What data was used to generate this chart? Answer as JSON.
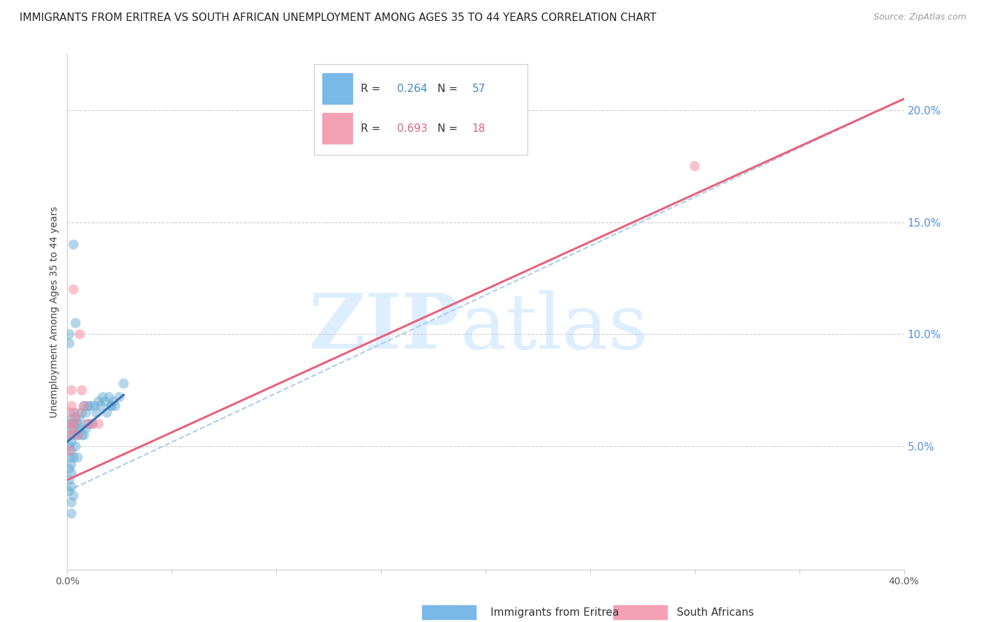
{
  "title": "IMMIGRANTS FROM ERITREA VS SOUTH AFRICAN UNEMPLOYMENT AMONG AGES 35 TO 44 YEARS CORRELATION CHART",
  "source": "Source: ZipAtlas.com",
  "ylabel": "Unemployment Among Ages 35 to 44 years",
  "xlim": [
    0.0,
    0.4
  ],
  "ylim": [
    -0.005,
    0.225
  ],
  "xticks": [
    0.0,
    0.05,
    0.1,
    0.15,
    0.2,
    0.25,
    0.3,
    0.35,
    0.4
  ],
  "yticks_right": [
    0.05,
    0.1,
    0.15,
    0.2
  ],
  "ytick_right_labels": [
    "5.0%",
    "10.0%",
    "15.0%",
    "20.0%"
  ],
  "blue_scatter_x": [
    0.001,
    0.001,
    0.001,
    0.001,
    0.001,
    0.001,
    0.001,
    0.002,
    0.002,
    0.002,
    0.002,
    0.002,
    0.002,
    0.002,
    0.003,
    0.003,
    0.003,
    0.003,
    0.003,
    0.004,
    0.004,
    0.004,
    0.005,
    0.005,
    0.005,
    0.006,
    0.006,
    0.007,
    0.007,
    0.008,
    0.008,
    0.009,
    0.009,
    0.01,
    0.01,
    0.011,
    0.012,
    0.013,
    0.014,
    0.015,
    0.016,
    0.017,
    0.018,
    0.019,
    0.02,
    0.021,
    0.022,
    0.023,
    0.025,
    0.027,
    0.001,
    0.001,
    0.002,
    0.002,
    0.003,
    0.004,
    0.021
  ],
  "blue_scatter_y": [
    0.05,
    0.055,
    0.06,
    0.045,
    0.04,
    0.035,
    0.03,
    0.048,
    0.052,
    0.058,
    0.062,
    0.042,
    0.038,
    0.032,
    0.055,
    0.06,
    0.065,
    0.045,
    0.028,
    0.058,
    0.063,
    0.05,
    0.06,
    0.055,
    0.045,
    0.062,
    0.058,
    0.065,
    0.055,
    0.068,
    0.055,
    0.065,
    0.058,
    0.068,
    0.06,
    0.068,
    0.06,
    0.068,
    0.065,
    0.07,
    0.068,
    0.072,
    0.07,
    0.065,
    0.072,
    0.068,
    0.07,
    0.068,
    0.072,
    0.078,
    0.096,
    0.1,
    0.02,
    0.025,
    0.14,
    0.105,
    0.068
  ],
  "pink_scatter_x": [
    0.001,
    0.001,
    0.001,
    0.002,
    0.002,
    0.002,
    0.003,
    0.003,
    0.004,
    0.005,
    0.005,
    0.006,
    0.007,
    0.008,
    0.01,
    0.012,
    0.015,
    0.3
  ],
  "pink_scatter_y": [
    0.048,
    0.055,
    0.065,
    0.06,
    0.068,
    0.075,
    0.058,
    0.12,
    0.062,
    0.065,
    0.055,
    0.1,
    0.075,
    0.068,
    0.06,
    0.06,
    0.06,
    0.175
  ],
  "blue_line_x": [
    0.0,
    0.027
  ],
  "blue_line_y": [
    0.052,
    0.073
  ],
  "pink_line_x": [
    0.0,
    0.4
  ],
  "pink_line_y": [
    0.035,
    0.205
  ],
  "dashed_line_x": [
    0.0,
    0.4
  ],
  "dashed_line_y": [
    0.03,
    0.205
  ],
  "scatter_size": 110,
  "scatter_alpha": 0.5,
  "blue_color": "#6aaed6",
  "pink_color": "#f4879a",
  "blue_line_color": "#3a6db5",
  "pink_line_color": "#e8607a",
  "dashed_line_color": "#aaccee",
  "watermark_zip": "ZIP",
  "watermark_atlas": "atlas",
  "watermark_color": "#ddeeff",
  "background_color": "#ffffff",
  "title_fontsize": 11,
  "axis_label_fontsize": 10,
  "tick_fontsize": 10,
  "right_tick_color": "#5590dd",
  "legend_blue_color": "#7ab8e8",
  "legend_pink_color": "#f4a0b5",
  "legend_r_val_blue": "0.264",
  "legend_n_val_blue": "57",
  "legend_r_val_pink": "0.693",
  "legend_n_val_pink": "18",
  "legend_val_color_blue": "#4488cc",
  "legend_val_color_pink": "#e06080",
  "bottom_legend_label1": "Immigrants from Eritrea",
  "bottom_legend_label2": "South Africans"
}
